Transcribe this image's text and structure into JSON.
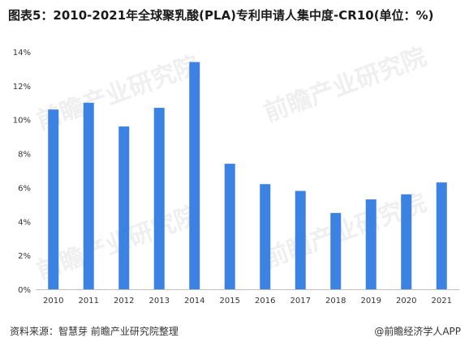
{
  "title": "图表5：2010-2021年全球聚乳酸(PLA)专利申请人集中度-CR10(单位：%)",
  "source": "资料来源：智慧芽 前瞻产业研究院整理",
  "credit": "@前瞻经济学人APP",
  "watermark": "前瞻产业研究院",
  "colors": {
    "bar": "#3c82e3",
    "axis": "#bfbfbf",
    "text": "#333333"
  },
  "chart_data": {
    "type": "bar",
    "title": "图表5：2010-2021年全球聚乳酸(PLA)专利申请人集中度-CR10(单位：%)",
    "xlabel": "",
    "ylabel": "",
    "categories": [
      "2010",
      "2011",
      "2012",
      "2013",
      "2014",
      "2015",
      "2016",
      "2017",
      "2018",
      "2019",
      "2020",
      "2021"
    ],
    "values": [
      10.6,
      11.0,
      9.6,
      10.7,
      13.4,
      7.4,
      6.2,
      5.8,
      4.5,
      5.3,
      5.6,
      6.3
    ],
    "ylim": [
      0,
      14
    ],
    "yticks": [
      "0%",
      "2%",
      "4%",
      "6%",
      "8%",
      "10%",
      "12%",
      "14%"
    ],
    "grid": false,
    "legend": "none"
  }
}
